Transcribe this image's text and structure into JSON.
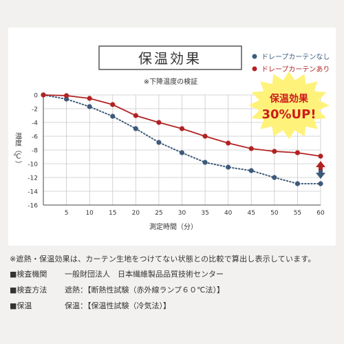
{
  "chart_data": {
    "type": "line",
    "title": "保温効果",
    "subtitle": "※下降温度の検証",
    "xlabel": "測定時間（分）",
    "ylabel": "温度（℃）",
    "x": [
      0,
      5,
      10,
      15,
      20,
      25,
      30,
      35,
      40,
      45,
      50,
      55,
      60
    ],
    "xticks": [
      "5",
      "10",
      "15",
      "20",
      "25",
      "30",
      "35",
      "40",
      "45",
      "50",
      "55",
      "60"
    ],
    "yticks": [
      "0",
      "-2",
      "-4",
      "-6",
      "-8",
      "-10",
      "-12",
      "-14",
      "-16"
    ],
    "ylim": [
      -16,
      0
    ],
    "xlim": [
      0,
      60
    ],
    "grid": true,
    "legend_position": "top-right",
    "series": [
      {
        "name": "ドレープカーテンなし",
        "color": "#3d5a7a",
        "style": "dotted",
        "values": [
          0,
          -0.6,
          -1.7,
          -3.1,
          -4.9,
          -6.9,
          -8.4,
          -9.8,
          -10.5,
          -11.0,
          -12.0,
          -12.9,
          -12.9
        ]
      },
      {
        "name": "ドレープカーテンあり",
        "color": "#b22222",
        "style": "solid",
        "values": [
          0,
          -0.1,
          -0.5,
          -1.4,
          -3.0,
          -4.0,
          -4.9,
          -6.0,
          -7.0,
          -7.8,
          -8.2,
          -8.4,
          -8.9
        ]
      }
    ],
    "annotation": {
      "line1": "保温効果",
      "line2": "30%UP!",
      "burst_color": "#fff27a",
      "text_color": "#cc1b1b",
      "arrow_colors": [
        "#b22222",
        "#3d5a7a"
      ]
    }
  },
  "footnote": "※遮熱・保温効果は、カーテン生地をつけてない状態との比較で算出し表示しています。",
  "specs": [
    {
      "key": "■検査機関",
      "value": "一般財団法人　日本繊維製品品質技術センター"
    },
    {
      "key": "■検査方法",
      "value": "遮熱：【断熱性試験（赤外線ランプ６０℃法）】"
    },
    {
      "key": "■保温",
      "value": "保温：【保温性試験（冷気法）】"
    }
  ]
}
